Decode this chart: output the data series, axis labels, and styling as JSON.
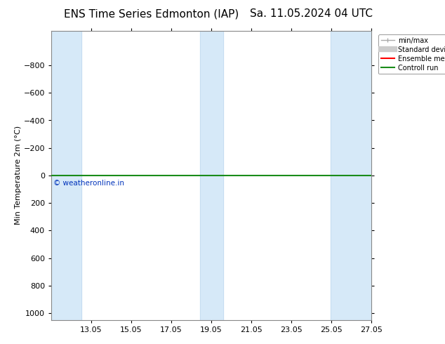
{
  "title": "ENS Time Series Edmonton (IAP)",
  "title2": "Sa. 11.05.2024 04 UTC",
  "ylabel": "Min Temperature 2m (°C)",
  "ylim": [
    -1050,
    1050
  ],
  "yticks": [
    -800,
    -600,
    -400,
    -200,
    0,
    200,
    400,
    600,
    800,
    1000
  ],
  "xmin": 11.05,
  "xmax": 27.05,
  "xtick_labels": [
    "13.05",
    "15.05",
    "17.05",
    "19.05",
    "21.05",
    "23.05",
    "25.05",
    "27.05"
  ],
  "xtick_positions": [
    13.05,
    15.05,
    17.05,
    19.05,
    21.05,
    23.05,
    25.05,
    27.05
  ],
  "plot_bg": "#ffffff",
  "shaded_columns": [
    11.05,
    12.55,
    18.5,
    19.65,
    25.0,
    27.05
  ],
  "shaded_color": "#d6e9f8",
  "green_line_y": 0,
  "legend_labels": [
    "min/max",
    "Standard deviation",
    "Ensemble mean run",
    "Controll run"
  ],
  "legend_colors_fill": [
    "#aaccee",
    "#cccccc"
  ],
  "legend_line_colors": [
    "#ff0000",
    "#1a8c1a"
  ],
  "watermark": "© weatheronline.in",
  "watermark_color": "#0033bb",
  "title_fontsize": 11,
  "tick_fontsize": 8,
  "ylabel_fontsize": 8
}
